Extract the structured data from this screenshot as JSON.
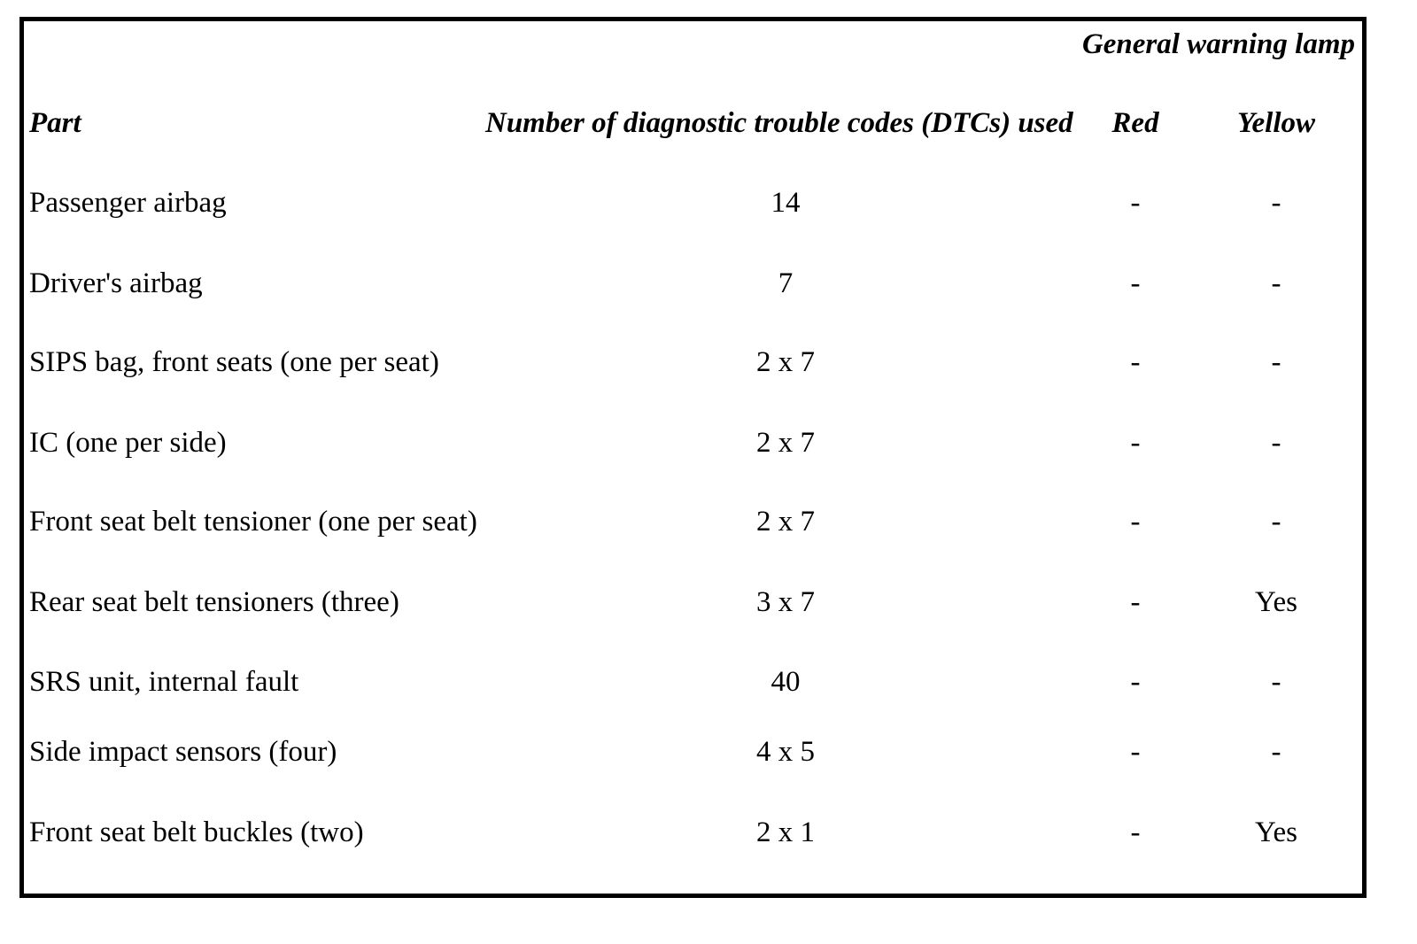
{
  "table": {
    "group_header": "General warning lamp",
    "headers": {
      "part": "Part",
      "dtcs": "Number of diagnostic trouble codes (DTCs) used",
      "red": "Red",
      "yellow": "Yellow"
    },
    "rows": [
      {
        "part": "Passenger airbag",
        "dtcs": "14",
        "red": "-",
        "yellow": "-"
      },
      {
        "part": "Driver's airbag",
        "dtcs": "7",
        "red": "-",
        "yellow": "-"
      },
      {
        "part": "SIPS bag, front seats (one per seat)",
        "dtcs": "2 x 7",
        "red": "-",
        "yellow": "-"
      },
      {
        "part": "IC (one per side)",
        "dtcs": "2 x 7",
        "red": "-",
        "yellow": "-"
      },
      {
        "part": "Front seat belt tensioner (one per seat)",
        "dtcs": "2 x 7",
        "red": "-",
        "yellow": "-"
      },
      {
        "part": "Rear seat belt tensioners (three)",
        "dtcs": "3 x 7",
        "red": "-",
        "yellow": "Yes"
      },
      {
        "part": "SRS unit, internal fault",
        "dtcs": "40",
        "red": "-",
        "yellow": "-"
      },
      {
        "part": "Side impact sensors (four)",
        "dtcs": "4 x 5",
        "red": "-",
        "yellow": "-"
      },
      {
        "part": "Front seat belt buckles (two)",
        "dtcs": "2 x 1",
        "red": "-",
        "yellow": "Yes"
      }
    ]
  }
}
